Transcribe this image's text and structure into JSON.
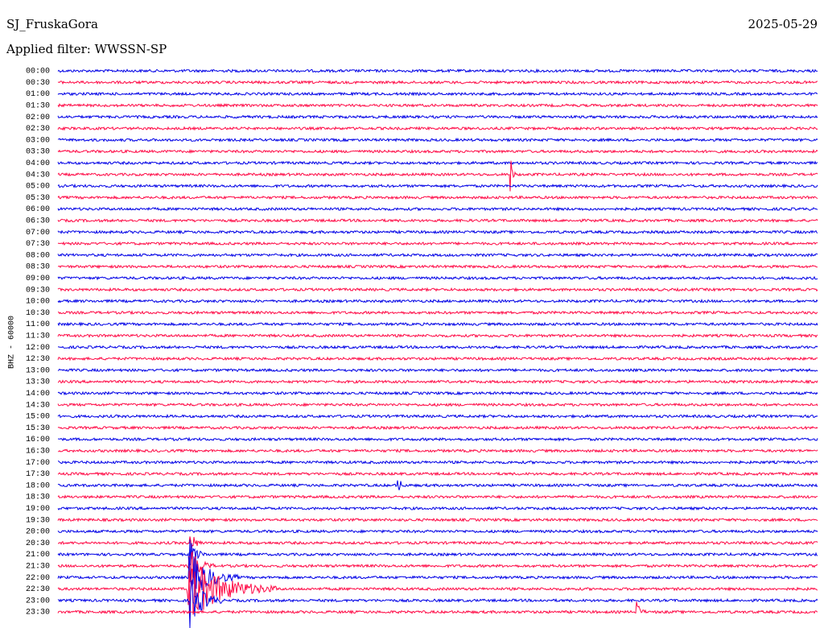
{
  "header": {
    "station": "SJ_FruskaGora",
    "date": "2025-05-29",
    "filter": "Applied filter: WWSSN-SP"
  },
  "axis_label": "BHZ - 60000",
  "trace_colors": [
    "#0000e6",
    "#ff0a46"
  ],
  "rows": [
    "00:00",
    "00:30",
    "01:00",
    "01:30",
    "02:00",
    "02:30",
    "03:00",
    "03:30",
    "04:00",
    "04:30",
    "05:00",
    "05:30",
    "06:00",
    "06:30",
    "07:00",
    "07:30",
    "08:00",
    "08:30",
    "09:00",
    "09:30",
    "10:00",
    "10:30",
    "11:00",
    "11:30",
    "12:00",
    "12:30",
    "13:00",
    "13:30",
    "14:00",
    "14:30",
    "15:00",
    "15:30",
    "16:00",
    "16:30",
    "17:00",
    "17:30",
    "18:00",
    "18:30",
    "19:00",
    "19:30",
    "20:00",
    "20:30",
    "21:00",
    "21:30",
    "22:00",
    "22:30",
    "23:00",
    "23:30"
  ]
}
